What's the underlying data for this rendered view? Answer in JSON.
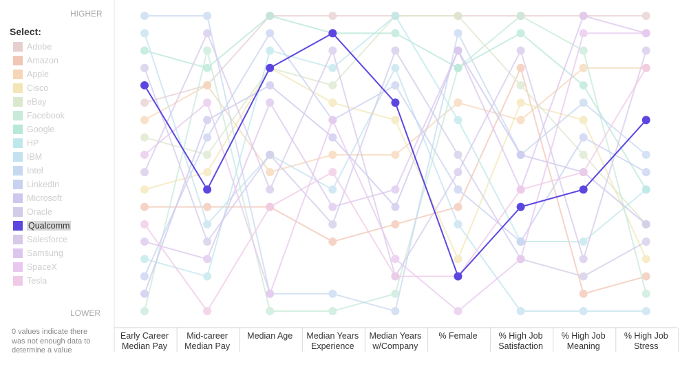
{
  "select_label": "Select:",
  "higher_label": "HIGHER",
  "lower_label": "LOWER",
  "note": "0 values indicate there was not enough data to determine a value",
  "chart_data": {
    "type": "line",
    "categories": [
      "Early Career Median Pay",
      "Mid-career Median Pay",
      "Median Age",
      "Median Years Experience",
      "Median Years w/Company",
      "% Female",
      "% High Job Satisfaction",
      "% High Job Meaning",
      "% High Job Stress"
    ],
    "y_direction": "rank 1 = HIGHER (top), rank 18 = LOWER (bottom)",
    "highlighted": "Qualcomm",
    "series": [
      {
        "name": "Adobe",
        "color": "#e8cfcf",
        "values": [
          6,
          5,
          1,
          1,
          1,
          1,
          1,
          1,
          1
        ]
      },
      {
        "name": "Amazon",
        "color": "#f2c6b4",
        "values": [
          12,
          12,
          12,
          14,
          13,
          12,
          4,
          17,
          16
        ]
      },
      {
        "name": "Apple",
        "color": "#f6d6b8",
        "values": [
          7,
          5,
          10,
          9,
          9,
          6,
          7,
          4,
          4
        ]
      },
      {
        "name": "Cisco",
        "color": "#f3e6b6",
        "values": [
          11,
          10,
          4,
          6,
          7,
          15,
          6,
          7,
          15
        ]
      },
      {
        "name": "eBay",
        "color": "#dbe8cd",
        "values": [
          8,
          9,
          4,
          5,
          1,
          1,
          5,
          9,
          13
        ]
      },
      {
        "name": "Facebook",
        "color": "#c8ead9",
        "values": [
          18,
          3,
          18,
          18,
          17,
          4,
          1,
          3,
          17
        ]
      },
      {
        "name": "Google",
        "color": "#b8e8d8",
        "values": [
          3,
          4,
          1,
          2,
          2,
          4,
          2,
          5,
          11
        ]
      },
      {
        "name": "HP",
        "color": "#bfe8ec",
        "values": [
          15,
          16,
          3,
          4,
          1,
          7,
          14,
          14,
          11
        ]
      },
      {
        "name": "IBM",
        "color": "#c3e2f0",
        "values": [
          2,
          13,
          9,
          11,
          4,
          13,
          18,
          18,
          18
        ]
      },
      {
        "name": "Intel",
        "color": "#c7d9f0",
        "values": [
          1,
          1,
          17,
          17,
          18,
          2,
          9,
          6,
          9
        ]
      },
      {
        "name": "LinkedIn",
        "color": "#c9d1f0",
        "values": [
          16,
          8,
          2,
          7,
          5,
          11,
          14,
          8,
          10
        ]
      },
      {
        "name": "Microsoft",
        "color": "#ccc8ee",
        "values": [
          17,
          7,
          5,
          8,
          12,
          3,
          9,
          10,
          13
        ]
      },
      {
        "name": "Oracle",
        "color": "#d2cce8",
        "values": [
          4,
          14,
          9,
          13,
          3,
          9,
          15,
          16,
          14
        ]
      },
      {
        "name": "Qualcomm",
        "color": "#5b47e0",
        "values": [
          5,
          11,
          4,
          2,
          6,
          16,
          12,
          11,
          7
        ]
      },
      {
        "name": "Salesforce",
        "color": "#d8c9ea",
        "values": [
          10,
          2,
          11,
          3,
          16,
          10,
          3,
          15,
          3
        ]
      },
      {
        "name": "Samsung",
        "color": "#dcc6ee",
        "values": [
          14,
          15,
          6,
          12,
          11,
          3,
          11,
          1,
          2
        ]
      },
      {
        "name": "SpaceX",
        "color": "#e8c8ee",
        "values": [
          9,
          6,
          17,
          7,
          15,
          18,
          15,
          2,
          2
        ]
      },
      {
        "name": "Tesla",
        "color": "#f0c9e6",
        "values": [
          13,
          18,
          12,
          10,
          16,
          16,
          11,
          10,
          4
        ]
      }
    ]
  }
}
